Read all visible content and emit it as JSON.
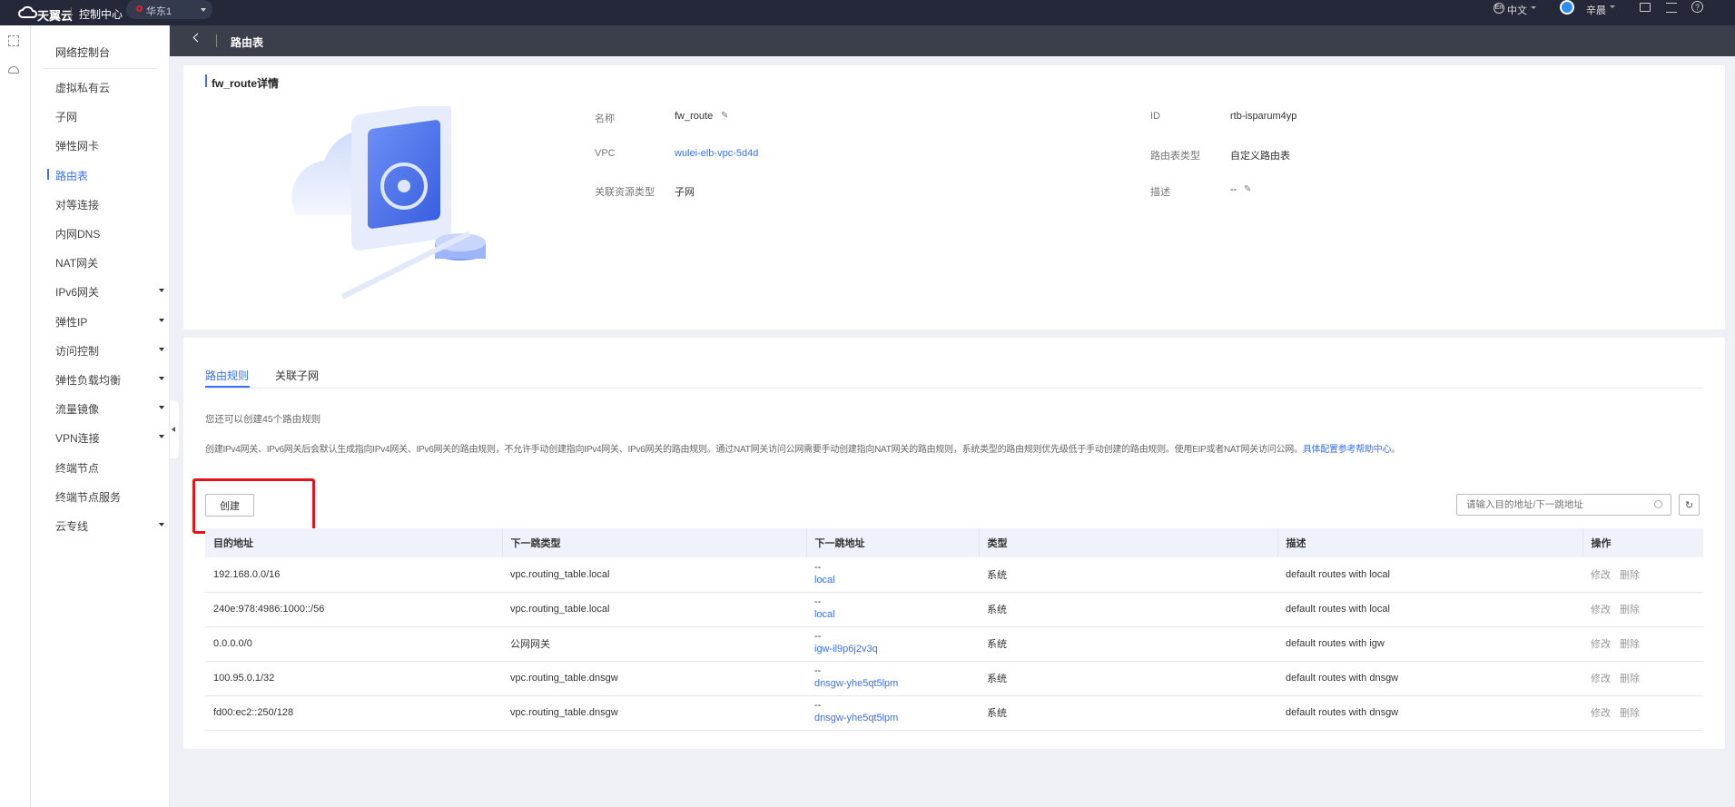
{
  "topbar": {
    "brand": "天翼云",
    "console": "控制中心",
    "region": "华东1",
    "language": "中文",
    "language_icon": "En",
    "user": "辛晨",
    "accent": "#3a6ff7",
    "region_pin_color": "#e0202a"
  },
  "breadcrumb": {
    "title": "路由表"
  },
  "sidebar": {
    "title": "网络控制台",
    "items": [
      {
        "label": "虚拟私有云",
        "caret": false
      },
      {
        "label": "子网",
        "caret": false
      },
      {
        "label": "弹性网卡",
        "caret": false
      },
      {
        "label": "路由表",
        "caret": false,
        "active": true
      },
      {
        "label": "对等连接",
        "caret": false
      },
      {
        "label": "内网DNS",
        "caret": false
      },
      {
        "label": "NAT网关",
        "caret": false
      },
      {
        "label": "IPv6网关",
        "caret": true
      },
      {
        "label": "弹性IP",
        "caret": true
      },
      {
        "label": "访问控制",
        "caret": true
      },
      {
        "label": "弹性负载均衡",
        "caret": true
      },
      {
        "label": "流量镜像",
        "caret": true
      },
      {
        "label": "VPN连接",
        "caret": true
      },
      {
        "label": "终端节点",
        "caret": false
      },
      {
        "label": "终端节点服务",
        "caret": false
      },
      {
        "label": "云专线",
        "caret": true
      }
    ]
  },
  "detail": {
    "title": "fw_route详情",
    "name_label": "名称",
    "name": "fw_route",
    "vpc_label": "VPC",
    "vpc": "wulei-elb-vpc-5d4d",
    "assoc_label": "关联资源类型",
    "assoc": "子网",
    "id_label": "ID",
    "id": "rtb-isparum4yp",
    "type_label": "路由表类型",
    "type": "自定义路由表",
    "desc_label": "描述",
    "desc": "--"
  },
  "rules": {
    "tabs": [
      "路由规则",
      "关联子网"
    ],
    "active_tab": 0,
    "quota_note": "您还可以创建45个路由规则",
    "note": "创建IPv4网关、IPv6网关后会默认生成指向IPv4网关、IPv6网关的路由规则，不允许手动创建指向IPv4网关、IPv6网关的路由规则。通过NAT网关访问公网需要手动创建指向NAT网关的路由规则，系统类型的路由规则优先级低于手动创建的路由规则。使用EIP或者NAT网关访问公网。",
    "help_link": "具体配置参考帮助中心。",
    "create_label": "创建",
    "search_placeholder": "请输入目的地址/下一跳地址",
    "columns": [
      "目的地址",
      "下一跳类型",
      "下一跳地址",
      "类型",
      "描述",
      "操作"
    ],
    "rows": [
      {
        "dest": "192.168.0.0/16",
        "hop_type": "vpc.routing_table.local",
        "hop_top": "--",
        "hop": "local",
        "type": "系统",
        "desc": "default routes with local",
        "edit": "修改",
        "delete": "删除"
      },
      {
        "dest": "240e:978:4986:1000::/56",
        "hop_type": "vpc.routing_table.local",
        "hop_top": "--",
        "hop": "local",
        "type": "系统",
        "desc": "default routes with local",
        "edit": "修改",
        "delete": "删除"
      },
      {
        "dest": "0.0.0.0/0",
        "hop_type": "公网网关",
        "hop_top": "--",
        "hop": "igw-il9p6j2v3q",
        "type": "系统",
        "desc": "default routes with igw",
        "edit": "修改",
        "delete": "删除"
      },
      {
        "dest": "100.95.0.1/32",
        "hop_type": "vpc.routing_table.dnsgw",
        "hop_top": "--",
        "hop": "dnsgw-yhe5qt5lpm",
        "type": "系统",
        "desc": "default routes with dnsgw",
        "edit": "修改",
        "delete": "删除"
      },
      {
        "dest": "fd00:ec2::250/128",
        "hop_type": "vpc.routing_table.dnsgw",
        "hop_top": "--",
        "hop": "dnsgw-yhe5qt5lpm",
        "type": "系统",
        "desc": "default routes with dnsgw",
        "edit": "修改",
        "delete": "删除"
      }
    ]
  }
}
